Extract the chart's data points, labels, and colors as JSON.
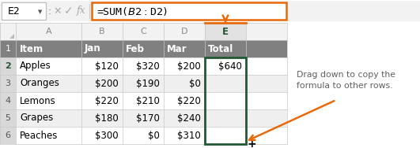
{
  "formula_bar": {
    "cell_ref": "E2",
    "formula": "=SUM($B2:$D2)",
    "formula_box_color": "#E8690A"
  },
  "col_headers": [
    "Item",
    "Jan",
    "Feb",
    "Mar",
    "Total"
  ],
  "col_letters": [
    "A",
    "B",
    "C",
    "D",
    "E"
  ],
  "rows": [
    [
      "Apples",
      "$120",
      "$320",
      "$200",
      "$640"
    ],
    [
      "Oranges",
      "$200",
      "$190",
      "$0",
      ""
    ],
    [
      "Lemons",
      "$220",
      "$210",
      "$220",
      ""
    ],
    [
      "Grapes",
      "$180",
      "$170",
      "$240",
      ""
    ],
    [
      "Peaches",
      "$300",
      "$0",
      "$310",
      ""
    ]
  ],
  "header_bg": "#808080",
  "header_text": "#FFFFFF",
  "row_num_bg": "#D8D8D8",
  "row_num_text": "#555555",
  "selected_col_hdr_bg": "#E2E2E2",
  "selected_col_hdr_text": "#215732",
  "selected_col_hdr_border": "#E8690A",
  "selected_cell_border": "#215732",
  "alt_row_bg": "#EFEFEF",
  "normal_row_bg": "#FFFFFF",
  "grid_color": "#C8C8C8",
  "toolbar_bg": "#F2F2F2",
  "annotation_text_line1": "Drag down to copy the",
  "annotation_text_line2": "formula to other rows.",
  "annotation_color": "#606060",
  "arrow_color": "#E8690A",
  "row_num_selected_text": "#215732",
  "row_num_selected_bg": "#D8D8D8"
}
